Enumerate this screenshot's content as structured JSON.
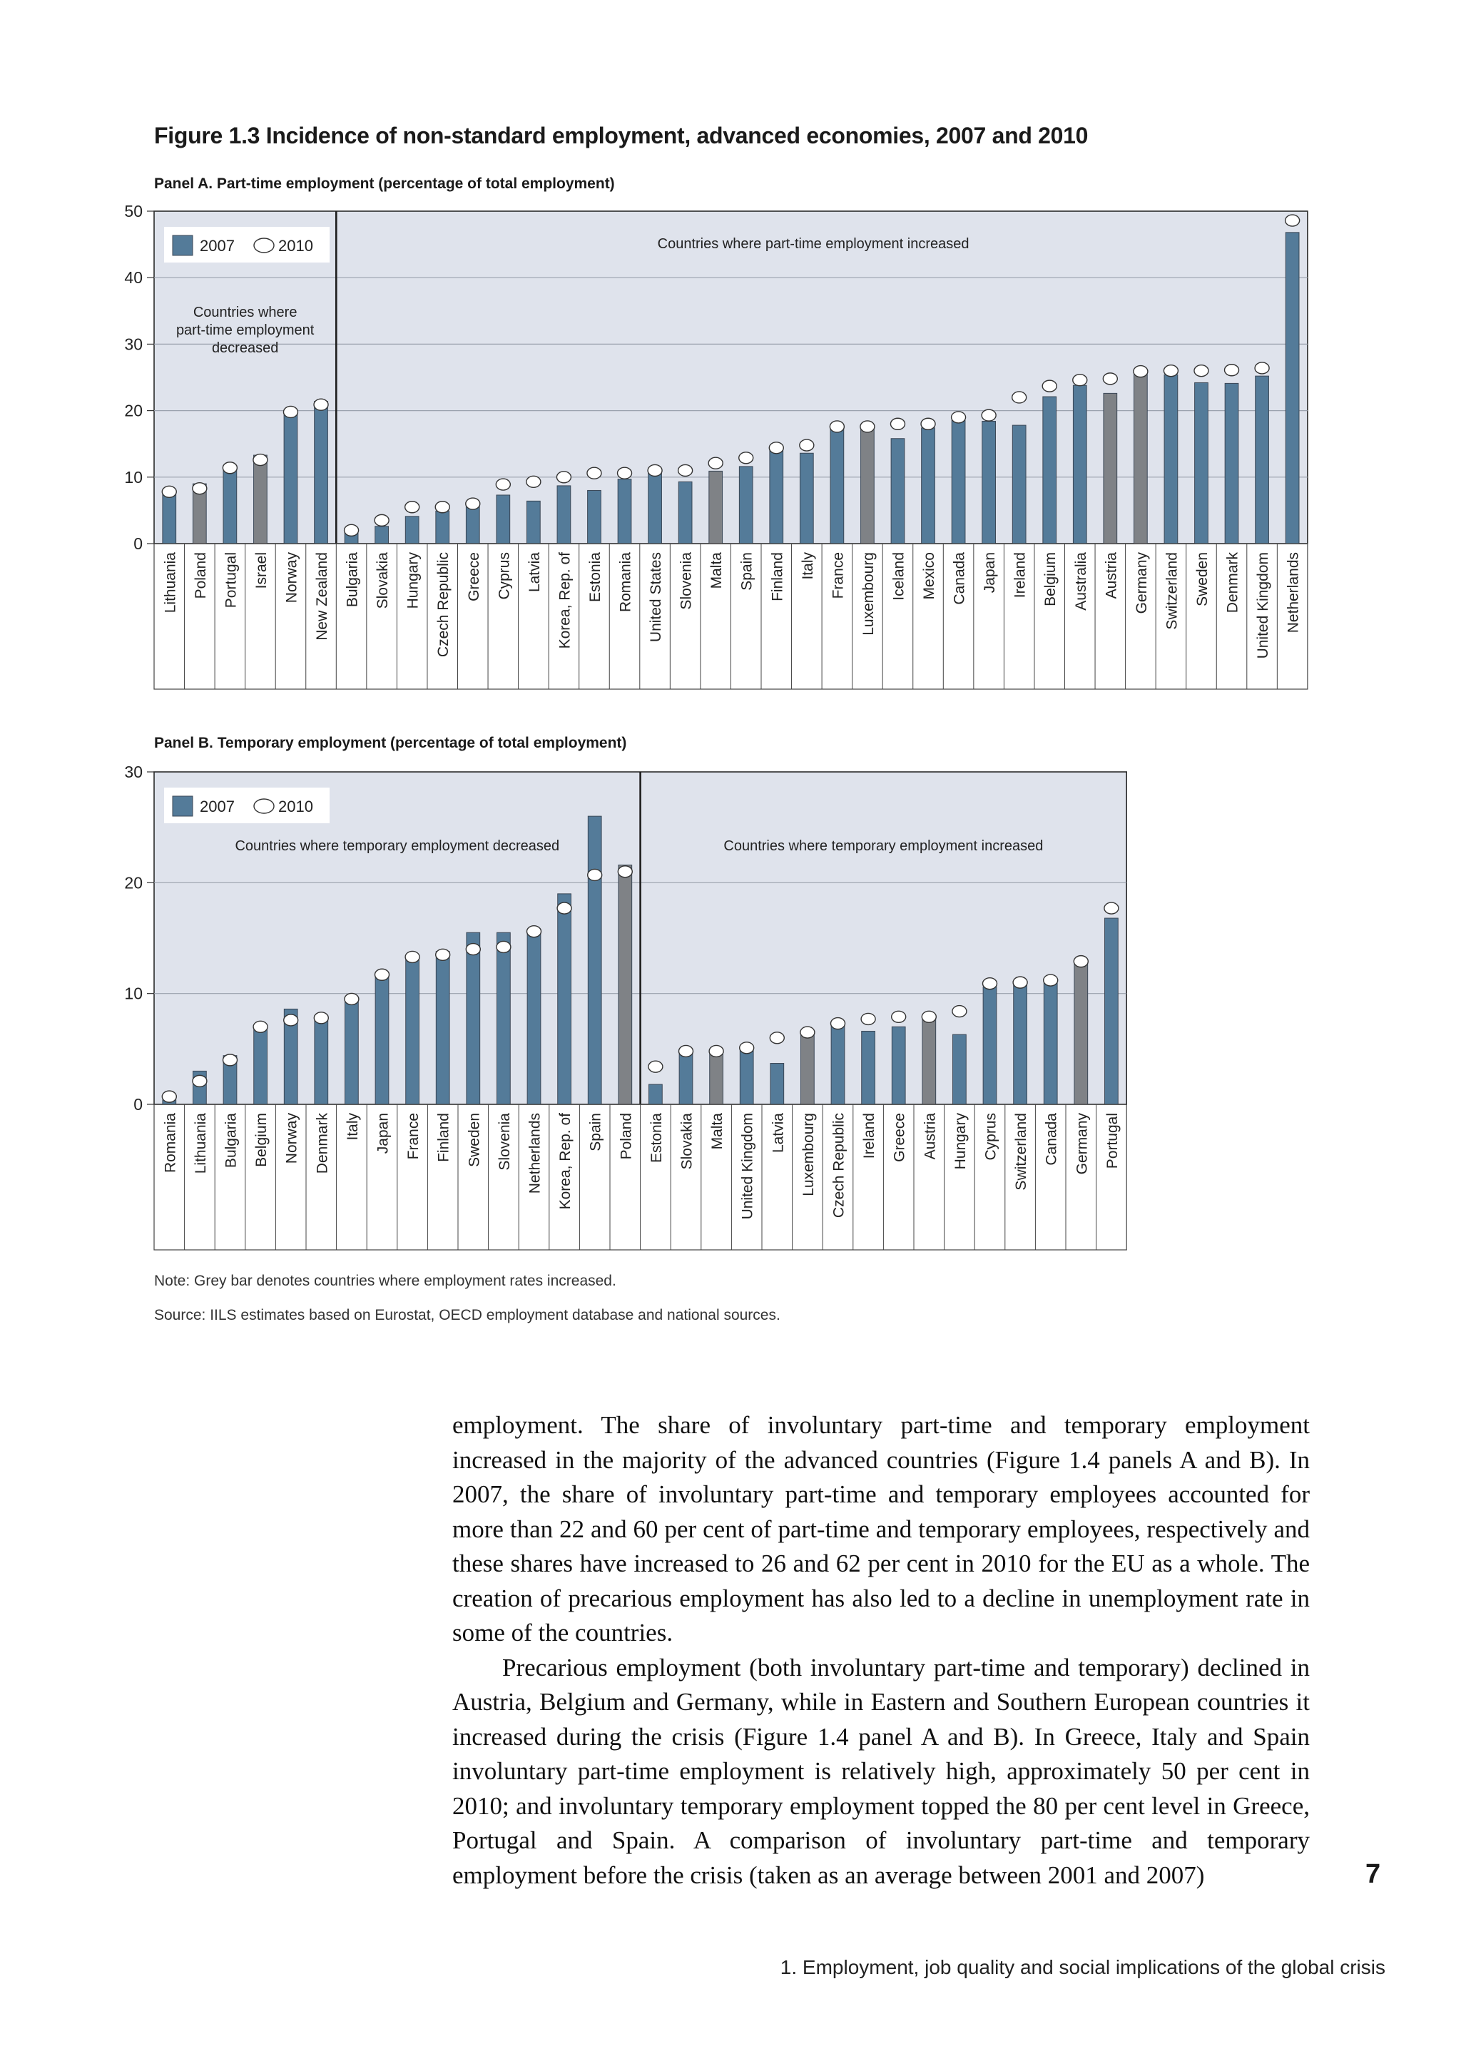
{
  "figure": {
    "title": "Figure 1.3  Incidence of non-standard employment, advanced economies, 2007 and 2010",
    "note": "Note: Grey bar denotes countries where employment rates increased.",
    "source": "Source: IILS estimates based on Eurostat, OECD employment database and national sources."
  },
  "colors": {
    "bar_decreased": "#547b99",
    "bar_increased": "#7f8286",
    "plot_bg": "#dfe3ec",
    "grid": "#9aa1ad"
  },
  "chart_data": [
    {
      "type": "bar",
      "title": "Panel A. Part-time employment (percentage of total employment)",
      "ylim": [
        0,
        50
      ],
      "yticks": [
        0,
        10,
        20,
        30,
        40,
        50
      ],
      "grid": true,
      "legend": {
        "items": [
          "2007",
          "2010"
        ],
        "placement": "top-left"
      },
      "annotations": [
        "Countries where part-time employment decreased",
        "Countries where part-time employment increased"
      ],
      "decreased_count": 6,
      "categories": [
        "Lithuania",
        "Poland",
        "Portugal",
        "Israel",
        "Norway",
        "New Zealand",
        "Bulgaria",
        "Slovakia",
        "Hungary",
        "Czech Republic",
        "Greece",
        "Cyprus",
        "Latvia",
        "Korea, Rep. of",
        "Estonia",
        "Romania",
        "United States",
        "Slovenia",
        "Malta",
        "Spain",
        "Finland",
        "Italy",
        "France",
        "Luxembourg",
        "Iceland",
        "Mexico",
        "Canada",
        "Japan",
        "Ireland",
        "Belgium",
        "Australia",
        "Austria",
        "Germany",
        "Switzerland",
        "Sweden",
        "Denmark",
        "United Kingdom",
        "Netherlands"
      ],
      "series": [
        {
          "name": "2007",
          "mark": "bar",
          "values": [
            7.4,
            9.0,
            11.6,
            13.3,
            19.6,
            21.4,
            1.6,
            2.6,
            4.1,
            4.9,
            5.6,
            7.3,
            6.4,
            8.7,
            8.0,
            9.7,
            10.8,
            9.3,
            10.9,
            11.6,
            14.1,
            13.6,
            17.7,
            17.2,
            15.8,
            17.4,
            18.5,
            18.4,
            17.8,
            22.1,
            23.8,
            22.6,
            25.9,
            25.4,
            24.2,
            24.1,
            25.2,
            46.8
          ]
        },
        {
          "name": "2010",
          "mark": "circle",
          "values": [
            7.8,
            8.3,
            11.4,
            12.6,
            19.8,
            20.9,
            2.0,
            3.5,
            5.5,
            5.5,
            6.0,
            8.9,
            9.3,
            10.0,
            10.6,
            10.6,
            11.0,
            11.0,
            12.1,
            12.9,
            14.4,
            14.8,
            17.6,
            17.6,
            18.0,
            18.0,
            19.0,
            19.3,
            22.0,
            23.7,
            24.6,
            24.8,
            25.9,
            26.0,
            26.0,
            26.1,
            26.4,
            48.6
          ]
        }
      ],
      "increased_flags": [
        false,
        true,
        false,
        true,
        false,
        false,
        false,
        false,
        false,
        false,
        false,
        false,
        false,
        false,
        false,
        false,
        false,
        false,
        true,
        false,
        false,
        false,
        false,
        true,
        false,
        false,
        false,
        false,
        false,
        false,
        false,
        true,
        true,
        false,
        false,
        false,
        false,
        false
      ]
    },
    {
      "type": "bar",
      "title": "Panel B. Temporary employment (percentage of total employment)",
      "ylim": [
        0,
        30
      ],
      "yticks": [
        0,
        10,
        20,
        30
      ],
      "grid": true,
      "legend": {
        "items": [
          "2007",
          "2010"
        ],
        "placement": "top-left"
      },
      "annotations": [
        "Countries where temporary employment decreased",
        "Countries where temporary employment increased"
      ],
      "decreased_count": 16,
      "categories": [
        "Romania",
        "Lithuania",
        "Bulgaria",
        "Belgium",
        "Norway",
        "Denmark",
        "Italy",
        "Japan",
        "France",
        "Finland",
        "Sweden",
        "Slovenia",
        "Netherlands",
        "Korea, Rep. of",
        "Spain",
        "Poland",
        "Estonia",
        "Slovakia",
        "Malta",
        "United Kingdom",
        "Latvia",
        "Luxembourg",
        "Czech Republic",
        "Ireland",
        "Greece",
        "Austria",
        "Hungary",
        "Cyprus",
        "Switzerland",
        "Canada",
        "Germany",
        "Portugal"
      ],
      "series": [
        {
          "name": "2007",
          "mark": "bar",
          "values": [
            0.4,
            3.0,
            4.4,
            7.1,
            8.6,
            8.0,
            9.4,
            11.9,
            13.3,
            13.8,
            15.5,
            15.5,
            15.8,
            19.0,
            26.0,
            21.6,
            1.8,
            4.8,
            4.6,
            5.2,
            3.7,
            6.4,
            7.4,
            6.6,
            7.0,
            7.7,
            6.3,
            10.6,
            11.0,
            11.2,
            12.7,
            16.8
          ]
        },
        {
          "name": "2010",
          "mark": "circle",
          "values": [
            0.7,
            2.1,
            4.0,
            7.0,
            7.6,
            7.8,
            9.5,
            11.7,
            13.3,
            13.5,
            14.0,
            14.2,
            15.6,
            17.7,
            20.7,
            21.0,
            3.4,
            4.8,
            4.8,
            5.1,
            6.0,
            6.5,
            7.3,
            7.7,
            7.9,
            7.9,
            8.4,
            10.9,
            11.0,
            11.2,
            12.9,
            17.7
          ]
        }
      ],
      "increased_flags": [
        false,
        false,
        false,
        false,
        false,
        false,
        false,
        false,
        false,
        false,
        false,
        false,
        false,
        false,
        false,
        true,
        false,
        false,
        true,
        false,
        false,
        true,
        false,
        false,
        false,
        true,
        false,
        false,
        false,
        false,
        true,
        false
      ]
    }
  ],
  "body": {
    "paragraphs": [
      "employment. The share of involuntary part-time and temporary employment increased in the majority of the advanced countries (Figure 1.4 panels A and B). In 2007, the share of involuntary part-time and temporary employees accounted for more than 22 and 60 per cent of part-time and temporary employees, respectively and these shares have increased to 26 and 62 per cent in 2010 for the EU as a whole. The creation of precarious employment has also led to a decline in unemployment rate in some of the countries.",
      "Precarious employment (both involuntary part-time and temporary) declined in Austria, Belgium and Germany, while in Eastern and Southern European countries it increased during the crisis (Figure 1.4 panel A and B). In Greece, Italy and Spain involuntary part-time employment is relatively high, approximately 50 per cent in 2010; and involuntary temporary employment topped the 80 per cent level in Greece, Portugal and Spain. A comparison of involuntary part-time and temporary employment before the crisis (taken as an average between 2001 and 2007)"
    ]
  },
  "page": {
    "number": "7",
    "running_footer": "1. Employment, job quality and social implications of the global crisis"
  }
}
